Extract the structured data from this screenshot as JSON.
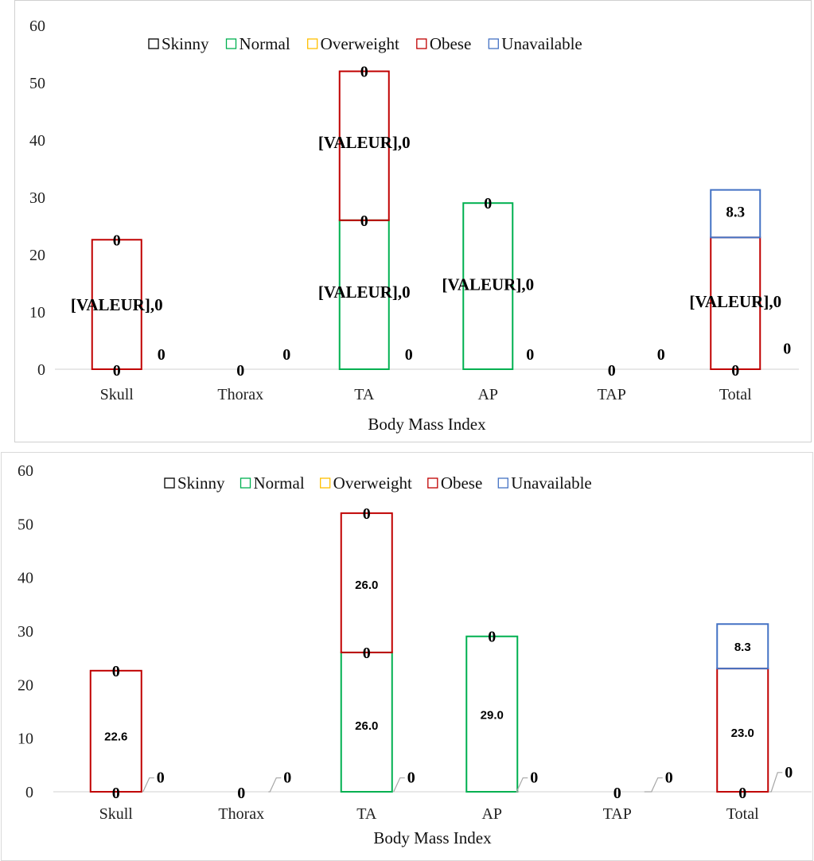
{
  "chart_data": [
    {
      "type": "bar",
      "stacked": true,
      "categories": [
        "Skull",
        "Thorax",
        "TA",
        "AP",
        "TAP",
        "Total"
      ],
      "xlabel": "Body Mass Index",
      "ylabel": "",
      "ylim": [
        0,
        60
      ],
      "yticks": [
        0,
        10,
        20,
        30,
        40,
        50,
        60
      ],
      "legend_position": "top",
      "grid": false,
      "series": [
        {
          "name": "Skinny",
          "color": "#000000",
          "values": [
            0,
            0,
            0,
            0,
            0,
            0
          ]
        },
        {
          "name": "Normal",
          "color": "#00b050",
          "values": [
            0,
            0,
            26.0,
            29.0,
            0,
            0
          ]
        },
        {
          "name": "Overweight",
          "color": "#ffc000",
          "values": [
            0,
            0,
            0,
            0,
            0,
            0
          ]
        },
        {
          "name": "Obese",
          "color": "#c00000",
          "values": [
            22.6,
            0,
            26.0,
            0,
            0,
            23.0
          ]
        },
        {
          "name": "Unavailable",
          "color": "#4472c4",
          "values": [
            0,
            0,
            0,
            0,
            0,
            8.3
          ]
        }
      ],
      "data_labels": {
        "zero": "0",
        "placeholder": "[VALEUR],0",
        "unavailable_total": "8.3"
      }
    },
    {
      "type": "bar",
      "stacked": true,
      "categories": [
        "Skull",
        "Thorax",
        "TA",
        "AP",
        "TAP",
        "Total"
      ],
      "xlabel": "Body Mass Index",
      "ylabel": "",
      "ylim": [
        0,
        60
      ],
      "yticks": [
        0,
        10,
        20,
        30,
        40,
        50,
        60
      ],
      "legend_position": "top",
      "grid": false,
      "series": [
        {
          "name": "Skinny",
          "color": "#000000",
          "values": [
            0,
            0,
            0,
            0,
            0,
            0
          ]
        },
        {
          "name": "Normal",
          "color": "#00b050",
          "values": [
            0,
            0,
            26.0,
            29.0,
            0,
            0
          ]
        },
        {
          "name": "Overweight",
          "color": "#ffc000",
          "values": [
            0,
            0,
            0,
            0,
            0,
            0
          ]
        },
        {
          "name": "Obese",
          "color": "#c00000",
          "values": [
            22.6,
            0,
            26.0,
            0,
            0,
            23.0
          ]
        },
        {
          "name": "Unavailable",
          "color": "#4472c4",
          "values": [
            0,
            0,
            0,
            0,
            0,
            8.3
          ]
        }
      ],
      "data_labels": {
        "zero": "0",
        "skull_obese": "22.6",
        "ta_normal": "26.0",
        "ta_obese": "26.0",
        "ap_normal": "29.0",
        "total_obese": "23.0",
        "total_unavailable": "8.3"
      }
    }
  ]
}
